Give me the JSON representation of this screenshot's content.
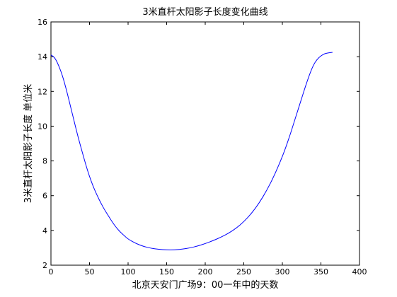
{
  "chart_data": {
    "type": "line",
    "title": "3米直杆太阳影子长度变化曲线",
    "xlabel": "北京天安门广场9：00一年中的天数",
    "ylabel": "3米直杆太阳影子长度 单位米",
    "xlim": [
      0,
      400
    ],
    "ylim": [
      2,
      16
    ],
    "xticks": [
      0,
      50,
      100,
      150,
      200,
      250,
      300,
      350,
      400
    ],
    "yticks": [
      2,
      4,
      6,
      8,
      10,
      12,
      14,
      16
    ],
    "grid": false,
    "line_color": "#0000ff",
    "series": [
      {
        "x": [
          0,
          5,
          10,
          15,
          20,
          25,
          30,
          35,
          40,
          45,
          50,
          55,
          60,
          65,
          70,
          75,
          80,
          85,
          90,
          95,
          100,
          110,
          120,
          130,
          140,
          150,
          160,
          170,
          180,
          190,
          200,
          210,
          220,
          230,
          240,
          250,
          260,
          270,
          280,
          290,
          300,
          305,
          310,
          315,
          320,
          325,
          330,
          335,
          340,
          345,
          350,
          355,
          360,
          365
        ],
        "y": [
          14.1,
          13.95,
          13.5,
          12.9,
          12.1,
          11.2,
          10.3,
          9.4,
          8.6,
          7.8,
          7.1,
          6.5,
          6.0,
          5.55,
          5.15,
          4.8,
          4.45,
          4.15,
          3.9,
          3.7,
          3.5,
          3.25,
          3.08,
          2.97,
          2.91,
          2.88,
          2.88,
          2.92,
          2.99,
          3.1,
          3.24,
          3.41,
          3.6,
          3.83,
          4.12,
          4.5,
          4.98,
          5.58,
          6.32,
          7.2,
          8.25,
          8.85,
          9.5,
          10.2,
          10.9,
          11.6,
          12.3,
          12.95,
          13.5,
          13.85,
          14.05,
          14.18,
          14.22,
          14.25
        ]
      }
    ]
  }
}
